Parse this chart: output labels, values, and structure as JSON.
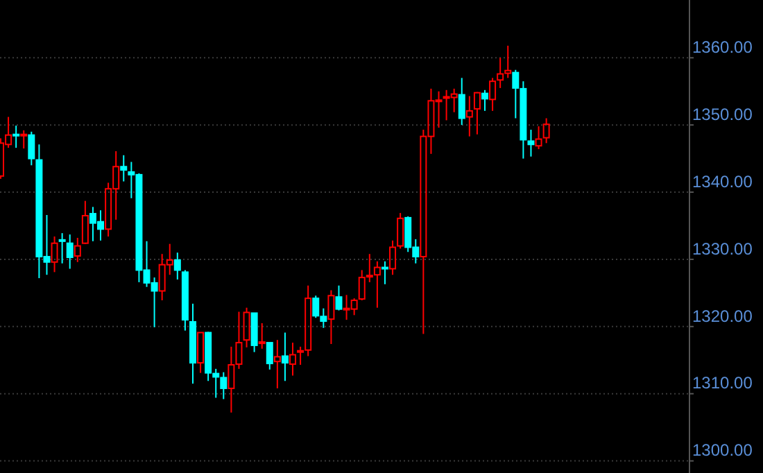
{
  "chart_data": {
    "type": "candlestick",
    "categories": [
      null,
      null,
      null,
      null,
      null,
      null,
      null,
      null,
      null,
      null,
      null,
      null,
      null,
      null,
      null,
      null,
      null,
      null,
      null,
      null,
      null,
      null,
      null,
      null,
      null,
      null,
      null,
      null,
      null,
      null,
      null,
      null,
      null,
      null,
      null,
      null,
      null,
      null,
      null,
      null,
      null,
      null,
      null,
      null,
      null,
      null,
      null,
      null,
      null,
      null,
      null,
      null,
      null,
      null,
      null,
      null,
      null,
      null,
      null,
      null,
      null,
      null,
      null,
      null,
      null,
      null,
      null,
      null,
      null,
      null,
      null,
      null,
      null,
      null,
      null,
      null,
      null,
      null,
      null,
      null,
      null,
      null,
      null,
      null,
      null,
      null,
      null,
      null,
      null,
      null
    ],
    "ohlc": [
      [
        1342.4,
        1348,
        1342,
        1347.3
      ],
      [
        1347.1,
        1351.2,
        1346.6,
        1348.5
      ],
      [
        1348.6,
        1349.9,
        1346.6,
        1348.4
      ],
      [
        1348.4,
        1349.2,
        1346.5,
        1348.6
      ],
      [
        1348.5,
        1349,
        1344,
        1345
      ],
      [
        1344.8,
        1347.1,
        1327.2,
        1330.4
      ],
      [
        1330.4,
        1336.6,
        1327.7,
        1329.6
      ],
      [
        1329.6,
        1333.4,
        1328.1,
        1332.4
      ],
      [
        1332.9,
        1333.9,
        1329.4,
        1332.7
      ],
      [
        1332.4,
        1333.7,
        1328.6,
        1330.3
      ],
      [
        1330.5,
        1333.2,
        1329.6,
        1332
      ],
      [
        1332.4,
        1338.7,
        1332.3,
        1336.5
      ],
      [
        1336.8,
        1337.8,
        1332.7,
        1335.4
      ],
      [
        1335.6,
        1337.3,
        1332.8,
        1334.5
      ],
      [
        1334.5,
        1341.4,
        1333.4,
        1340.5
      ],
      [
        1340.5,
        1346.1,
        1335.9,
        1343.8
      ],
      [
        1343.8,
        1345.5,
        1341.6,
        1343.3
      ],
      [
        1343,
        1344.5,
        1339.1,
        1342.6
      ],
      [
        1342.6,
        1342.8,
        1326.6,
        1328.4
      ],
      [
        1328.4,
        1332.7,
        1325.9,
        1326.5
      ],
      [
        1326.5,
        1327.3,
        1319.9,
        1325.3
      ],
      [
        1325.3,
        1330.8,
        1323.9,
        1329.2
      ],
      [
        1329.2,
        1332.3,
        1327.7,
        1329.9
      ],
      [
        1329.9,
        1331,
        1327,
        1328.4
      ],
      [
        1328.1,
        1328.4,
        1319.4,
        1321
      ],
      [
        1320.7,
        1323.4,
        1311.5,
        1314.6
      ],
      [
        1314.6,
        1319.1,
        1313.1,
        1319.1
      ],
      [
        1319.1,
        1319.2,
        1311.9,
        1313.1
      ],
      [
        1313,
        1313.7,
        1309.4,
        1312.5
      ],
      [
        1312.4,
        1313.2,
        1309.2,
        1310.8
      ],
      [
        1310.8,
        1317,
        1307.2,
        1314.3
      ],
      [
        1314.4,
        1322.2,
        1313.7,
        1317.6
      ],
      [
        1318,
        1322.8,
        1316.9,
        1322.1
      ],
      [
        1322,
        1322,
        1316.2,
        1317.2
      ],
      [
        1317.5,
        1320.5,
        1316.7,
        1317.7
      ],
      [
        1317.6,
        1317.6,
        1313.6,
        1314.5
      ],
      [
        1314.8,
        1318,
        1310.8,
        1315.5
      ],
      [
        1315.6,
        1319.1,
        1311.9,
        1314.6
      ],
      [
        1314.4,
        1317.6,
        1312.7,
        1315.8
      ],
      [
        1316.2,
        1317,
        1314.3,
        1316.4
      ],
      [
        1316.5,
        1326.1,
        1315.6,
        1324.2
      ],
      [
        1324.2,
        1324.6,
        1321.3,
        1321.6
      ],
      [
        1321.5,
        1322.7,
        1319.8,
        1320.8
      ],
      [
        1321.1,
        1325.4,
        1317.4,
        1324.6
      ],
      [
        1324.4,
        1326.1,
        1322.4,
        1322.6
      ],
      [
        1322.5,
        1324.7,
        1321,
        1322.7
      ],
      [
        1322.6,
        1324.2,
        1321.7,
        1323.9
      ],
      [
        1324.1,
        1328.4,
        1323.9,
        1327.3
      ],
      [
        1327.4,
        1330.8,
        1326.6,
        1327.6
      ],
      [
        1327.7,
        1329.7,
        1322.8,
        1328.8
      ],
      [
        1328.8,
        1329.7,
        1326.3,
        1328.6
      ],
      [
        1328.6,
        1332.8,
        1327.7,
        1331.8
      ],
      [
        1332,
        1336.9,
        1331.6,
        1336.1
      ],
      [
        1336.2,
        1336.4,
        1331.1,
        1331.8
      ],
      [
        1331.8,
        1333,
        1329.4,
        1330.4
      ],
      [
        1330.4,
        1349.3,
        1318.9,
        1348.3
      ],
      [
        1348.3,
        1355.4,
        1345.7,
        1353.6
      ],
      [
        1353.5,
        1355,
        1349.6,
        1353.7
      ],
      [
        1354,
        1355.2,
        1350.7,
        1354.2
      ],
      [
        1354.1,
        1355.4,
        1351.9,
        1354.6
      ],
      [
        1354.5,
        1357,
        1350,
        1351
      ],
      [
        1351.2,
        1354.3,
        1348.3,
        1352.1
      ],
      [
        1352.4,
        1354.9,
        1348.6,
        1354.8
      ],
      [
        1354.7,
        1355.2,
        1352.1,
        1353.9
      ],
      [
        1353.8,
        1357,
        1352.1,
        1356.5
      ],
      [
        1356.7,
        1360,
        1355.5,
        1357.6
      ],
      [
        1357.7,
        1361.8,
        1357,
        1358.1
      ],
      [
        1357.8,
        1358.2,
        1351,
        1355.5
      ],
      [
        1355.4,
        1356.5,
        1345,
        1347.8
      ],
      [
        1347.6,
        1349.3,
        1345.3,
        1347.1
      ],
      [
        1346.9,
        1349.8,
        1346.4,
        1347.9
      ],
      [
        1348.1,
        1351,
        1347.3,
        1350.1
      ],
      null,
      null,
      null,
      null,
      null,
      null,
      null,
      null,
      null,
      null,
      null,
      null,
      null,
      null,
      null,
      null,
      null,
      null
    ],
    "colors": [
      "#ff0000",
      "#ff0000",
      "#00ffff",
      "#ff0000",
      "#00ffff",
      "#00ffff",
      "#00ffff",
      "#ff0000",
      "#00ffff",
      "#00ffff",
      "#ff0000",
      "#ff0000",
      "#00ffff",
      "#00ffff",
      "#ff0000",
      "#ff0000",
      "#00ffff",
      "#00ffff",
      "#00ffff",
      "#00ffff",
      "#00ffff",
      "#ff0000",
      "#ff0000",
      "#00ffff",
      "#00ffff",
      "#00ffff",
      "#ff0000",
      "#00ffff",
      "#00ffff",
      "#00ffff",
      "#ff0000",
      "#ff0000",
      "#ff0000",
      "#00ffff",
      "#ff0000",
      "#00ffff",
      "#ff0000",
      "#00ffff",
      "#ff0000",
      "#ff0000",
      "#ff0000",
      "#00ffff",
      "#00ffff",
      "#ff0000",
      "#00ffff",
      "#ff0000",
      "#ff0000",
      "#ff0000",
      "#ff0000",
      "#ff0000",
      "#00ffff",
      "#ff0000",
      "#ff0000",
      "#00ffff",
      "#00ffff",
      "#ff0000",
      "#ff0000",
      "#ff0000",
      "#ff0000",
      "#ff0000",
      "#00ffff",
      "#ff0000",
      "#ff0000",
      "#00ffff",
      "#ff0000",
      "#ff0000",
      "#ff0000",
      "#00ffff",
      "#00ffff",
      "#00ffff",
      "#ff0000",
      "#ff0000",
      null,
      null,
      null,
      null,
      null,
      null,
      null,
      null,
      null,
      null,
      null,
      null,
      null,
      null,
      null,
      null,
      null,
      null
    ],
    "ylim": [
      1298.2,
      1368.6
    ],
    "yticks": [
      {
        "value": 1300,
        "label": "1300.00"
      },
      {
        "value": 1310,
        "label": "1310.00"
      },
      {
        "value": 1320,
        "label": "1320.00"
      },
      {
        "value": 1330,
        "label": "1330.00"
      },
      {
        "value": 1340,
        "label": "1340.00"
      },
      {
        "value": 1350,
        "label": "1350.00"
      },
      {
        "value": 1360,
        "label": "1360.00"
      }
    ],
    "grid": "y",
    "tick_labels": "y"
  }
}
